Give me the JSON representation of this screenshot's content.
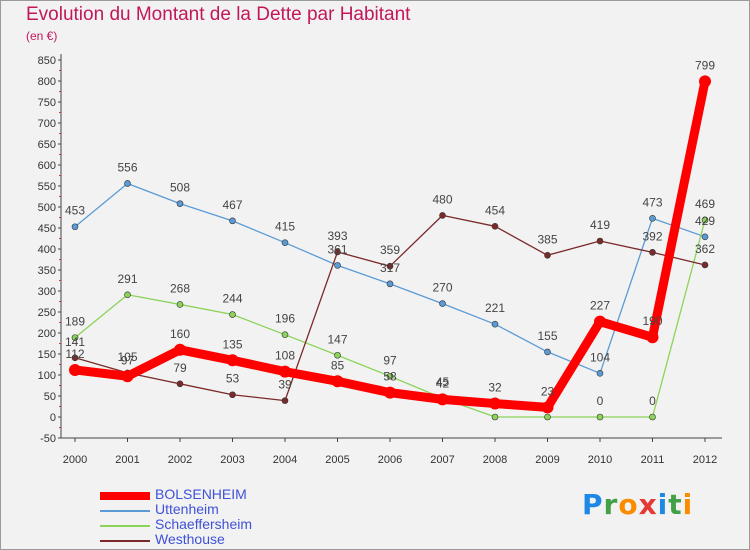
{
  "header": {
    "title": "Evolution du Montant de la Dette par Habitant",
    "unit": "(en €)"
  },
  "logo": {
    "text": "Proxiti",
    "letters": [
      "P",
      "r",
      "o",
      "x",
      "i",
      "t",
      "i"
    ],
    "colors": [
      "#1e88e5",
      "#43a047",
      "#fb8c00",
      "#e53935",
      "#1e88e5",
      "#43a047",
      "#fb8c00"
    ]
  },
  "chart_data": {
    "type": "line",
    "title": "Evolution du Montant de la Dette par Habitant",
    "subtitle": "(en €)",
    "x": [
      "2000",
      "2001",
      "2002",
      "2003",
      "2004",
      "2005",
      "2006",
      "2007",
      "2008",
      "2009",
      "2010",
      "2011",
      "2012"
    ],
    "ylim": [
      -50,
      850
    ],
    "yticks": [
      -50,
      0,
      50,
      100,
      150,
      200,
      250,
      300,
      350,
      400,
      450,
      500,
      550,
      600,
      650,
      700,
      750,
      800,
      850
    ],
    "grid": false,
    "legend_position": "bottom-left",
    "series": [
      {
        "name": "BOLSENHEIM",
        "color": "#ff0000",
        "emphasis": true,
        "values": [
          112,
          97,
          160,
          135,
          108,
          85,
          58,
          42,
          32,
          23,
          227,
          190,
          799
        ],
        "labels": [
          "112",
          "97",
          "160",
          "135",
          "108",
          "85",
          "58",
          "42",
          "32",
          "23",
          "227",
          "190",
          "799"
        ]
      },
      {
        "name": "Uttenheim",
        "color": "#5b9bd5",
        "values": [
          453,
          556,
          508,
          467,
          415,
          361,
          317,
          270,
          221,
          155,
          104,
          473,
          429
        ],
        "labels": [
          "453",
          "556",
          "508",
          "467",
          "415",
          "361",
          "317",
          "270",
          "221",
          "155",
          "104",
          "473",
          "429"
        ]
      },
      {
        "name": "Schaeffersheim",
        "color": "#8cd35a",
        "values": [
          189,
          291,
          268,
          244,
          196,
          147,
          97,
          45,
          0,
          0,
          0,
          0,
          469
        ],
        "labels": [
          "189",
          "291",
          "268",
          "244",
          "196",
          "147",
          "97",
          "45",
          "",
          "",
          "0",
          "0",
          "469"
        ]
      },
      {
        "name": "Westhouse",
        "color": "#7b2a2a",
        "values": [
          141,
          105,
          79,
          53,
          39,
          393,
          359,
          480,
          454,
          385,
          419,
          392,
          362
        ],
        "labels": [
          "141",
          "105",
          "79",
          "53",
          "39",
          "393",
          "359",
          "480",
          "454",
          "385",
          "419",
          "392",
          "362"
        ]
      }
    ]
  }
}
